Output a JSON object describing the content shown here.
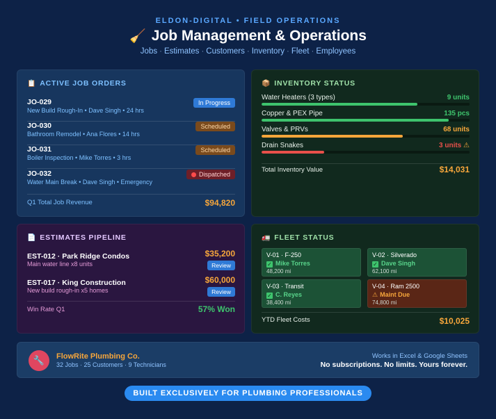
{
  "header": {
    "brand": "ELDON-DIGITAL • FIELD OPERATIONS",
    "title": "Job Management & Operations",
    "title_icon": "🧹",
    "nav": [
      "Jobs",
      "Estimates",
      "Customers",
      "Inventory",
      "Fleet",
      "Employees"
    ],
    "nav_sep": "·"
  },
  "jobs": {
    "title": "ACTIVE JOB ORDERS",
    "icon": "📋",
    "items": [
      {
        "id": "JO-029",
        "desc": "New Build Rough-In • Dave Singh • 24 hrs",
        "status": "In Progress"
      },
      {
        "id": "JO-030",
        "desc": "Bathroom Remodel • Ana Flores • 14 hrs",
        "status": "Scheduled"
      },
      {
        "id": "JO-031",
        "desc": "Boiler Inspection • Mike Torres • 3 hrs",
        "status": "Scheduled"
      },
      {
        "id": "JO-032",
        "desc": "Water Main Break • Dave Singh • Emergency",
        "status": "Dispatched"
      }
    ],
    "total_label": "Q1 Total Job Revenue",
    "total_value": "$94,820"
  },
  "inventory": {
    "title": "INVENTORY STATUS",
    "icon": "📦",
    "items": [
      {
        "label": "Water Heaters (3 types)",
        "value": "9 units",
        "level": 0.75,
        "color": "#3ec46d"
      },
      {
        "label": "Copper & PEX Pipe",
        "value": "135 pcs",
        "level": 0.9,
        "color": "#3ec46d"
      },
      {
        "label": "Valves & PRVs",
        "value": "68 units",
        "level": 0.68,
        "color": "#f6a63b"
      },
      {
        "label": "Drain Snakes",
        "value": "3 units",
        "warn": "⚠",
        "level": 0.3,
        "color": "#e8504a"
      }
    ],
    "total_label": "Total Inventory Value",
    "total_value": "$14,031"
  },
  "estimates": {
    "title": "ESTIMATES PIPELINE",
    "icon": "📄",
    "items": [
      {
        "name": "EST-012 · Park Ridge Condos",
        "desc": "Main water line x8 units",
        "amount": "$35,200",
        "status": "Review"
      },
      {
        "name": "EST-017 · King Construction",
        "desc": "New build rough-in x5 homes",
        "amount": "$60,000",
        "status": "Review"
      }
    ],
    "win_label": "Win Rate Q1",
    "win_value": "57% Won"
  },
  "fleet": {
    "title": "FLEET STATUS",
    "icon": "🚛",
    "vehicles": [
      {
        "name": "V-01 · F-250",
        "driver": "Mike Torres",
        "miles": "48,200 mi",
        "state": "ok"
      },
      {
        "name": "V-02 · Silverado",
        "driver": "Dave Singh",
        "miles": "62,100 mi",
        "state": "ok"
      },
      {
        "name": "V-03 · Transit",
        "driver": "C. Reyes",
        "miles": "38,400 mi",
        "state": "ok"
      },
      {
        "name": "V-04 · Ram 2500",
        "driver": "Maint Due",
        "miles": "74,800 mi",
        "state": "due"
      }
    ],
    "total_label": "YTD Fleet Costs",
    "total_value": "$10,025"
  },
  "footer": {
    "logo_icon": "🔧",
    "company": "FlowRite Plumbing Co.",
    "meta": "32 Jobs · 25 Customers · 9 Technicians",
    "right_top": "Works in Excel & Google Sheets",
    "right_bottom": "No subscriptions. No limits. Yours forever."
  },
  "cta": {
    "label": "BUILT EXCLUSIVELY FOR PLUMBING PROFESSIONALS"
  }
}
